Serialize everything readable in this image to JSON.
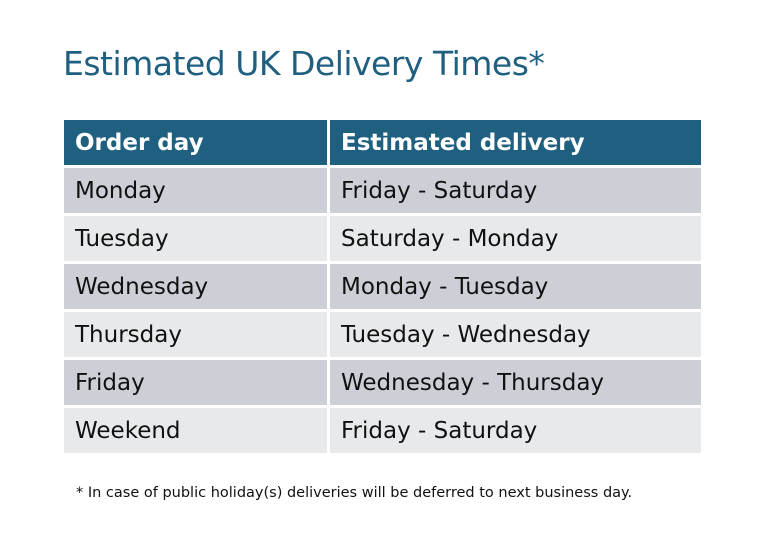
{
  "title": "Estimated UK Delivery Times*",
  "colors": {
    "header": "#1f5f80",
    "row_odd": "#ccd0d6",
    "row_even": "#e7e9eb"
  },
  "table": {
    "headers": [
      "Order day",
      "Estimated delivery"
    ],
    "rows": [
      [
        "Monday",
        "Friday - Saturday"
      ],
      [
        "Tuesday",
        "Saturday - Monday"
      ],
      [
        "Wednesday",
        "Monday - Tuesday"
      ],
      [
        "Thursday",
        "Tuesday - Wednesday"
      ],
      [
        "Friday",
        "Wednesday - Thursday"
      ],
      [
        "Weekend",
        "Friday - Saturday"
      ]
    ]
  },
  "footnote": "* In case of public holiday(s) deliveries will be deferred to next business day."
}
